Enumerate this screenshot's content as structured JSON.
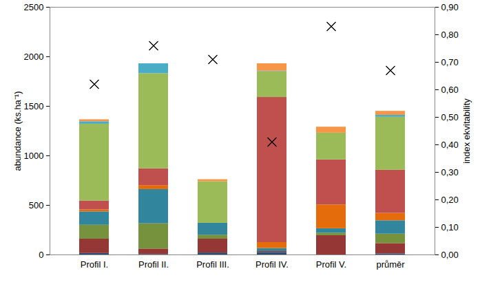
{
  "chart_data": {
    "type": "bar",
    "stacked": true,
    "categories": [
      "Profil I.",
      "Profil II.",
      "Profil III.",
      "Profil IV.",
      "Profil V.",
      "průměr"
    ],
    "ylabel": "abundance (ks.ha⁻¹)",
    "y2label": "index ekvitability",
    "ylim": [
      0,
      2500
    ],
    "yticks": [
      0,
      500,
      1000,
      1500,
      2000,
      2500
    ],
    "y2lim": [
      0,
      0.9
    ],
    "y2ticks": [
      {
        "value": 0,
        "label": "0,00"
      },
      {
        "value": 0.1,
        "label": "0,10"
      },
      {
        "value": 0.2,
        "label": "0,20"
      },
      {
        "value": 0.3,
        "label": "0,30"
      },
      {
        "value": 0.4,
        "label": "0,40"
      },
      {
        "value": 0.5,
        "label": "0,50"
      },
      {
        "value": 0.6,
        "label": "0,60"
      },
      {
        "value": 0.7,
        "label": "0,70"
      },
      {
        "value": 0.8,
        "label": "0,80"
      },
      {
        "value": 0.9,
        "label": "0,90"
      }
    ],
    "grid": false,
    "series": [
      {
        "color": "#2c4d75",
        "values": [
          15,
          5,
          20,
          25,
          0,
          10
        ]
      },
      {
        "color": "#953735",
        "values": [
          145,
          55,
          140,
          10,
          195,
          105
        ]
      },
      {
        "color": "#76923c",
        "values": [
          140,
          255,
          40,
          0,
          25,
          95
        ]
      },
      {
        "color": "#31859c",
        "values": [
          135,
          345,
          120,
          30,
          45,
          135
        ]
      },
      {
        "color": "#e46c0a",
        "values": [
          20,
          40,
          0,
          60,
          240,
          75
        ]
      },
      {
        "color": "#c0504d",
        "values": [
          90,
          170,
          0,
          1465,
          455,
          435
        ]
      },
      {
        "color": "#9bbb59",
        "values": [
          775,
          960,
          420,
          260,
          270,
          535
        ]
      },
      {
        "color": "#4bacc6",
        "values": [
          25,
          100,
          0,
          5,
          0,
          20
        ]
      },
      {
        "color": "#f79646",
        "values": [
          20,
          0,
          20,
          75,
          60,
          40
        ]
      },
      {
        "type": "scatter",
        "axis": "y2",
        "marker": "x",
        "color": "#000000",
        "values": [
          0.62,
          0.76,
          0.71,
          0.41,
          0.83,
          0.67
        ]
      }
    ]
  }
}
